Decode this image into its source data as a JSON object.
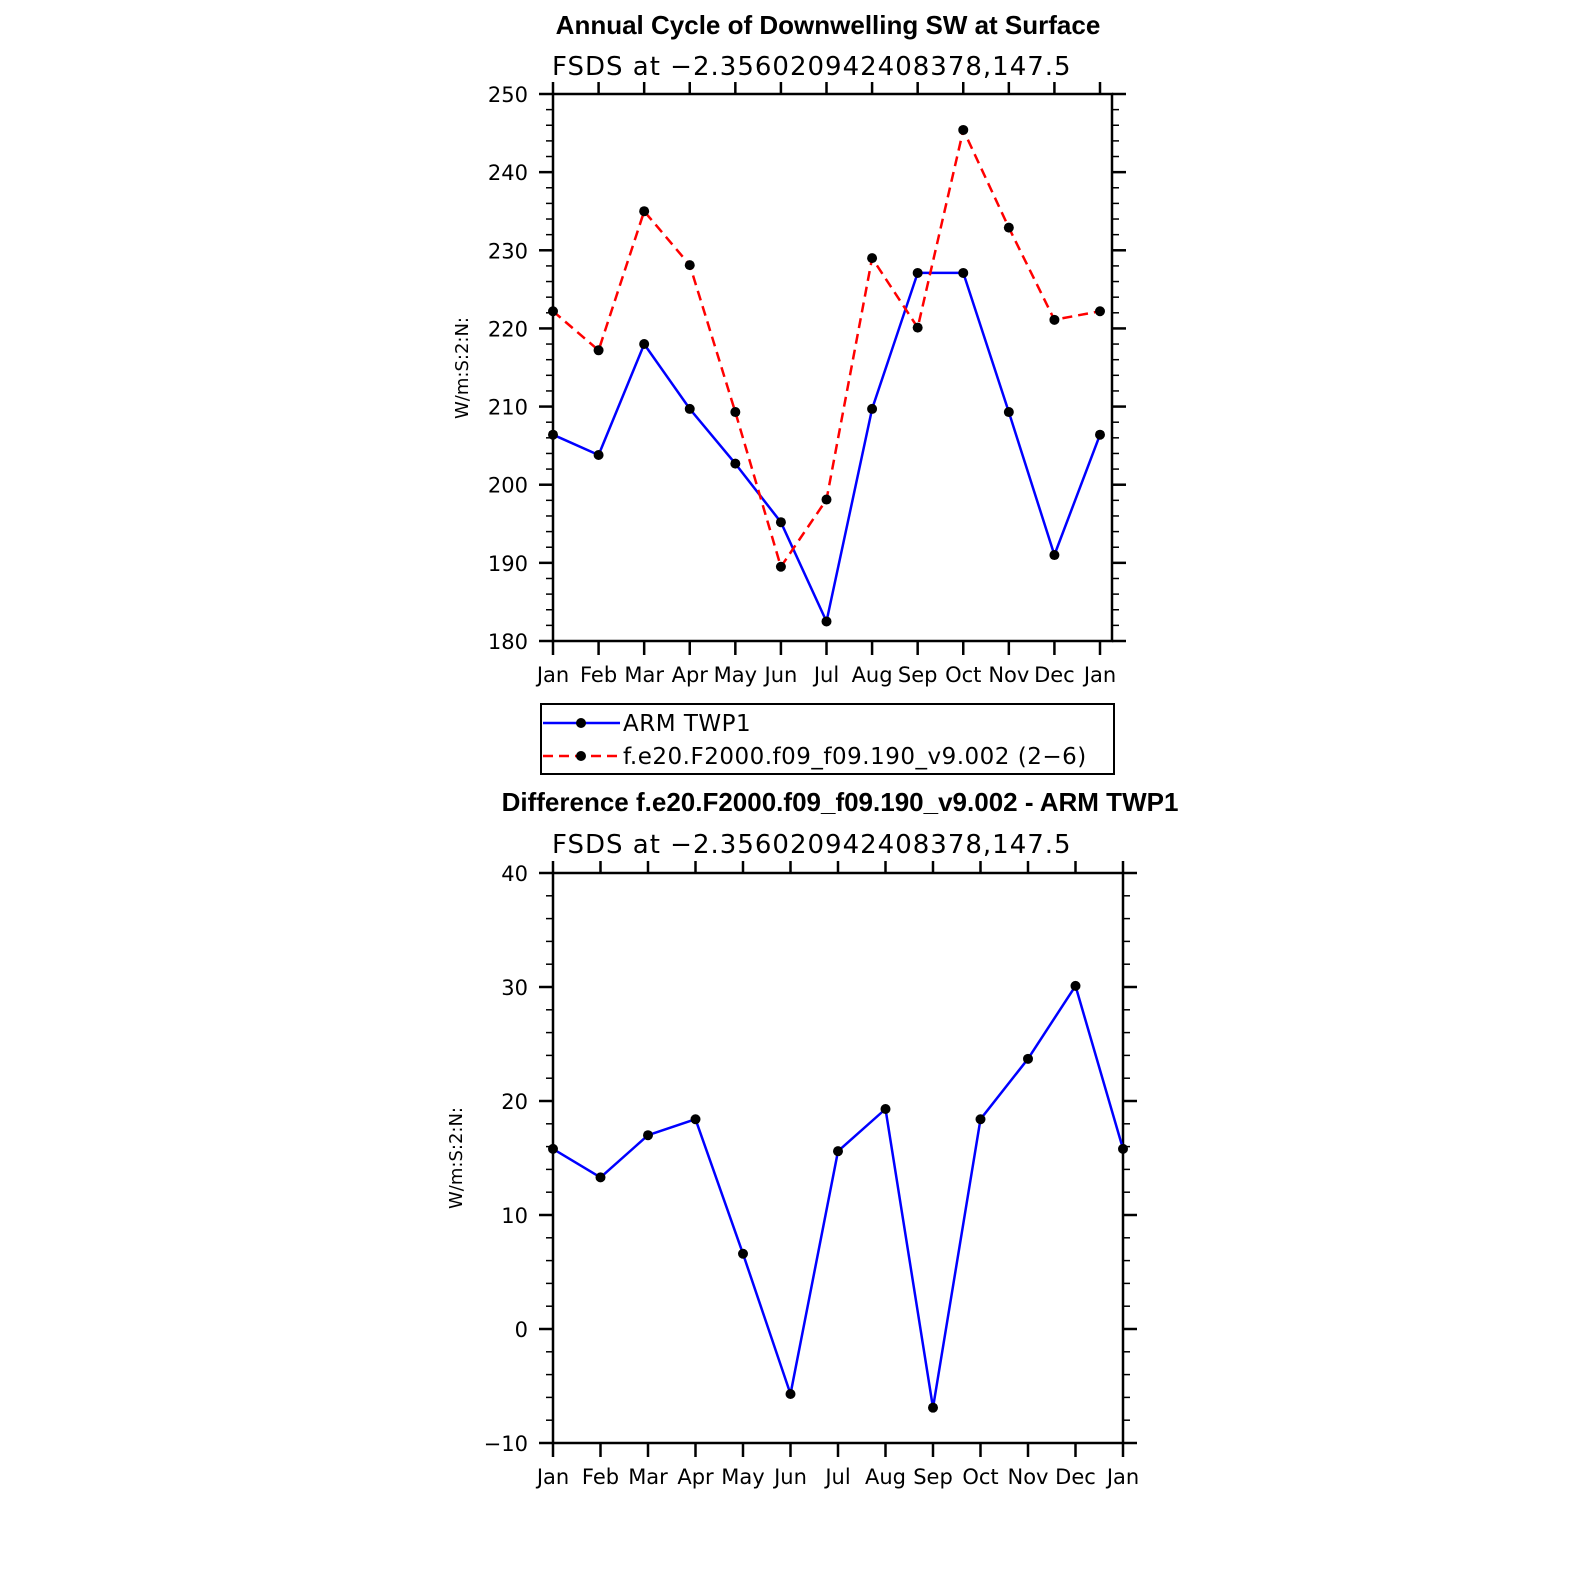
{
  "chart_data": [
    {
      "type": "line",
      "title": "Annual Cycle of Downwelling SW at Surface",
      "subtitle": "FSDS at −2.356020942408378,147.5",
      "ylabel": "W/m:S:2:N:",
      "xlabel": "",
      "categories": [
        "Jan",
        "Feb",
        "Mar",
        "Apr",
        "May",
        "Jun",
        "Jul",
        "Aug",
        "Sep",
        "Oct",
        "Nov",
        "Dec",
        "Jan"
      ],
      "ylim": [
        180,
        250
      ],
      "yticks": [
        180,
        190,
        200,
        210,
        220,
        230,
        240,
        250
      ],
      "ytick_labels": [
        "180",
        "190",
        "200",
        "210",
        "220",
        "230",
        "240",
        "250"
      ],
      "series": [
        {
          "name": "ARM TWP1",
          "color": "#0000ff",
          "dash": "solid",
          "values": [
            206.4,
            203.8,
            218.0,
            209.7,
            202.7,
            195.2,
            182.5,
            209.7,
            227.1,
            227.1,
            209.3,
            191.0,
            206.4
          ]
        },
        {
          "name": "f.e20.F2000.f09_f09.190_v9.002 (2−6)",
          "color": "#ff0000",
          "dash": "dashed",
          "values": [
            222.2,
            217.2,
            235.0,
            228.1,
            209.3,
            189.5,
            198.1,
            229.0,
            220.1,
            245.4,
            232.9,
            221.1,
            222.2
          ]
        }
      ],
      "legend": [
        "ARM TWP1",
        "f.e20.F2000.f09_f09.190_v9.002 (2−6)"
      ],
      "legend_position": "bottom"
    },
    {
      "type": "line",
      "title": "Difference f.e20.F2000.f09_f09.190_v9.002 - ARM TWP1",
      "subtitle": "FSDS at −2.356020942408378,147.5",
      "ylabel": "W/m:S:2:N:",
      "xlabel": "",
      "categories": [
        "Jan",
        "Feb",
        "Mar",
        "Apr",
        "May",
        "Jun",
        "Jul",
        "Aug",
        "Sep",
        "Oct",
        "Nov",
        "Dec",
        "Jan"
      ],
      "ylim": [
        -10,
        40
      ],
      "yticks": [
        -10,
        0,
        10,
        20,
        30,
        40
      ],
      "ytick_labels": [
        "−10",
        "0",
        "10",
        "20",
        "30",
        "40"
      ],
      "series": [
        {
          "name": "Difference",
          "color": "#0000ff",
          "dash": "solid",
          "values": [
            15.8,
            13.3,
            17.0,
            18.4,
            6.6,
            -5.7,
            15.6,
            19.3,
            -6.9,
            18.4,
            23.7,
            30.1,
            15.8
          ]
        }
      ]
    }
  ]
}
